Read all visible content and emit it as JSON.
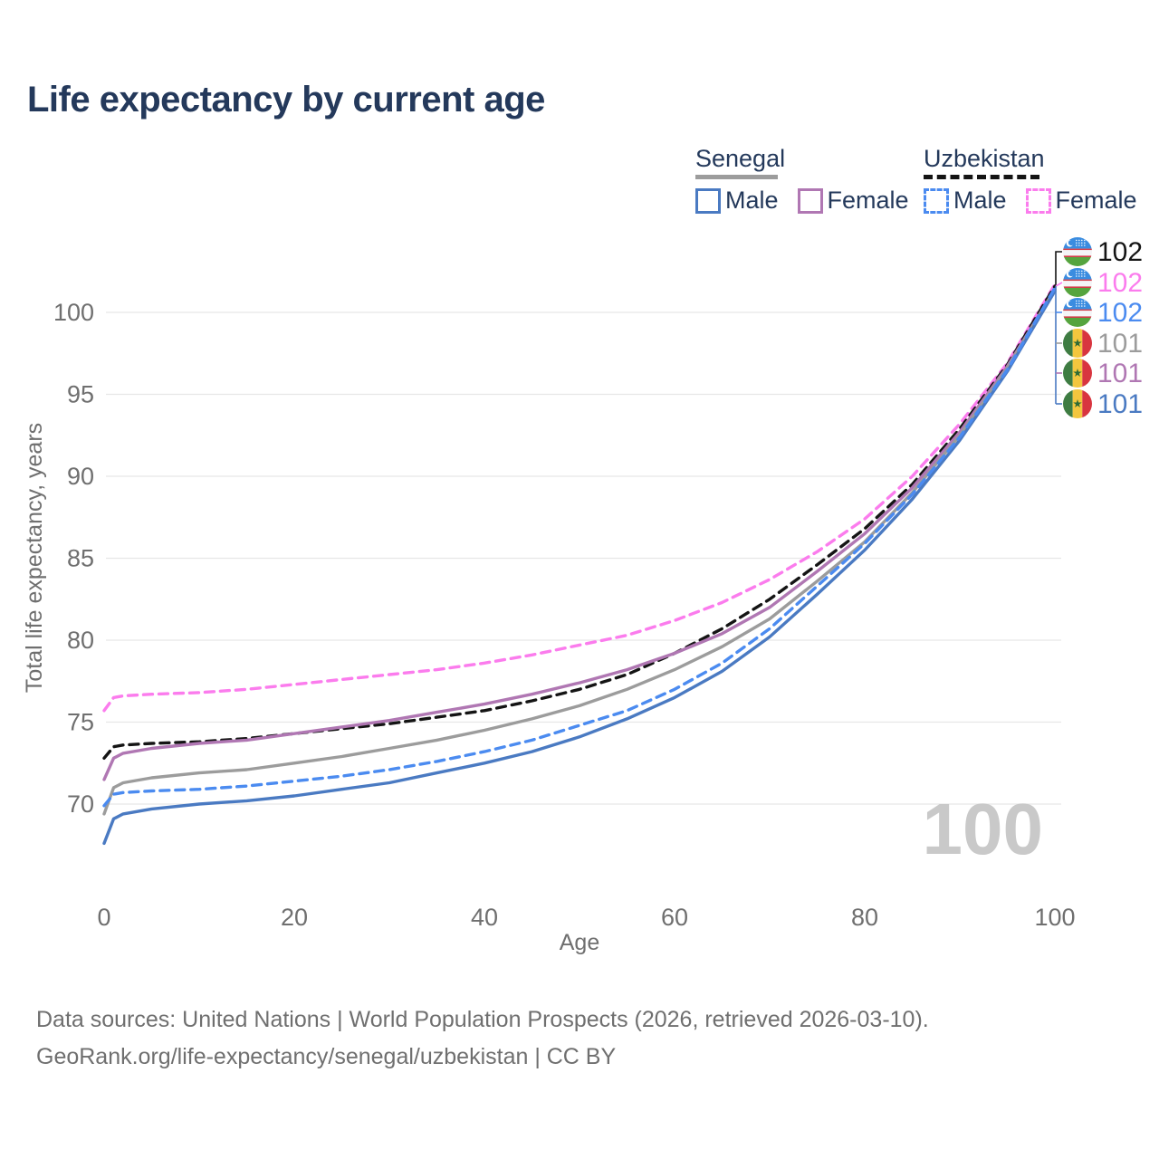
{
  "header": {
    "title": "Life expectancy by current age"
  },
  "legend": {
    "senegal": {
      "label": "Senegal",
      "male_label": "Male",
      "female_label": "Female"
    },
    "uzbekistan": {
      "label": "Uzbekistan",
      "male_label": "Male",
      "female_label": "Female"
    }
  },
  "colors": {
    "title_text": "#24395b",
    "axis_text": "#6f6f6f",
    "gridline": "#e7e7e7",
    "watermark": "#c9c9c9",
    "senegal_male": "#4a7ac2",
    "senegal_female": "#b077b3",
    "senegal_total": "#9c9c9c",
    "uzbekistan_male": "#4b8bf0",
    "uzbekistan_female": "#fb7ced",
    "uzbekistan_total": "#141414"
  },
  "chart_data": {
    "type": "line",
    "title": "Life expectancy by current age",
    "xlabel": "Age",
    "ylabel": "Total life expectancy, years",
    "watermark": "100",
    "xlim": [
      0,
      100
    ],
    "ylim": [
      67,
      103
    ],
    "xticks": [
      0,
      20,
      40,
      60,
      80,
      100
    ],
    "yticks": [
      70,
      75,
      80,
      85,
      90,
      95,
      100
    ],
    "grid": "horizontal",
    "legend_position": "top-right",
    "ages": [
      0,
      1,
      2,
      5,
      10,
      15,
      20,
      25,
      30,
      35,
      40,
      45,
      50,
      55,
      60,
      65,
      70,
      75,
      80,
      85,
      90,
      95,
      100
    ],
    "series": [
      {
        "name": "Uzbekistan Female",
        "country": "Uzbekistan",
        "sex": "Female",
        "style": "dashed",
        "color": "#fb7ced",
        "values": [
          75.7,
          76.5,
          76.6,
          76.7,
          76.8,
          77.0,
          77.3,
          77.6,
          77.9,
          78.2,
          78.6,
          79.1,
          79.7,
          80.3,
          81.2,
          82.3,
          83.7,
          85.4,
          87.4,
          90.0,
          93.2,
          96.9,
          101.7
        ]
      },
      {
        "name": "Uzbekistan Total",
        "country": "Uzbekistan",
        "sex": "Both",
        "style": "dashed",
        "color": "#141414",
        "values": [
          72.8,
          73.5,
          73.6,
          73.7,
          73.8,
          74.0,
          74.3,
          74.6,
          74.9,
          75.3,
          75.7,
          76.3,
          77.0,
          77.9,
          79.2,
          80.7,
          82.5,
          84.6,
          86.8,
          89.5,
          92.9,
          96.8,
          101.6
        ]
      },
      {
        "name": "Senegal Female",
        "country": "Senegal",
        "sex": "Female",
        "style": "solid",
        "color": "#b077b3",
        "values": [
          71.5,
          72.8,
          73.1,
          73.4,
          73.7,
          73.9,
          74.3,
          74.7,
          75.1,
          75.6,
          76.1,
          76.7,
          77.4,
          78.2,
          79.2,
          80.4,
          82.0,
          84.2,
          86.5,
          89.3,
          92.7,
          96.7,
          101.4
        ]
      },
      {
        "name": "Senegal Total",
        "country": "Senegal",
        "sex": "Both",
        "style": "solid",
        "color": "#9c9c9c",
        "values": [
          69.4,
          71.0,
          71.3,
          71.6,
          71.9,
          72.1,
          72.5,
          72.9,
          73.4,
          73.9,
          74.5,
          75.2,
          76.0,
          77.0,
          78.2,
          79.6,
          81.3,
          83.6,
          86.0,
          89.0,
          92.5,
          96.6,
          101.4
        ]
      },
      {
        "name": "Senegal Male",
        "country": "Senegal",
        "sex": "Male",
        "style": "solid",
        "color": "#4a7ac2",
        "values": [
          67.6,
          69.1,
          69.4,
          69.7,
          70.0,
          70.2,
          70.5,
          70.9,
          71.3,
          71.9,
          72.5,
          73.2,
          74.1,
          75.2,
          76.5,
          78.1,
          80.2,
          82.8,
          85.5,
          88.6,
          92.2,
          96.4,
          101.3
        ]
      },
      {
        "name": "Uzbekistan Male",
        "country": "Uzbekistan",
        "sex": "Male",
        "style": "dashed",
        "color": "#4b8bf0",
        "values": [
          69.9,
          70.6,
          70.7,
          70.8,
          70.9,
          71.1,
          71.4,
          71.7,
          72.1,
          72.6,
          73.2,
          73.9,
          74.8,
          75.7,
          77.0,
          78.6,
          80.7,
          83.3,
          85.9,
          88.9,
          92.4,
          96.5,
          101.5
        ]
      }
    ],
    "endpoint_labels": [
      {
        "country": "Uzbekistan",
        "sex": "Both",
        "flag": "uz",
        "value": "102",
        "color": "#141414"
      },
      {
        "country": "Uzbekistan",
        "sex": "Female",
        "flag": "uz",
        "value": "102",
        "color": "#fb7ced"
      },
      {
        "country": "Uzbekistan",
        "sex": "Male",
        "flag": "uz",
        "value": "102",
        "color": "#4b8bf0"
      },
      {
        "country": "Senegal",
        "sex": "Both",
        "flag": "sn",
        "value": "101",
        "color": "#9c9c9c"
      },
      {
        "country": "Senegal",
        "sex": "Female",
        "flag": "sn",
        "value": "101",
        "color": "#b077b3"
      },
      {
        "country": "Senegal",
        "sex": "Male",
        "flag": "sn",
        "value": "101",
        "color": "#4a7ac2"
      }
    ]
  },
  "footer": {
    "line1": "Data sources: United Nations | World Population Prospects (2026, retrieved 2026-03-10).",
    "line2": "GeoRank.org/life-expectancy/senegal/uzbekistan | CC BY"
  }
}
